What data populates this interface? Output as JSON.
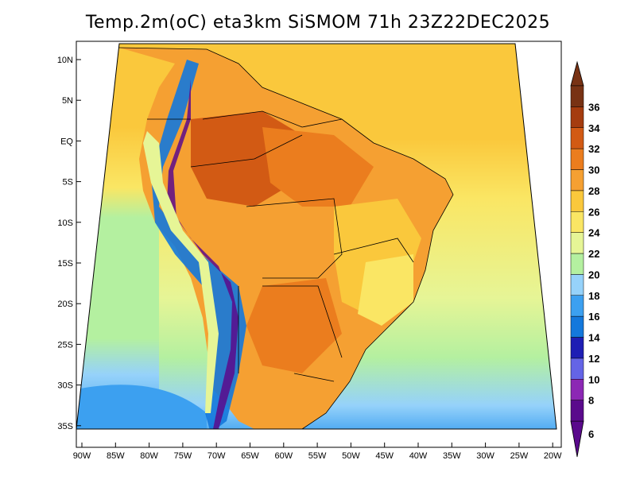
{
  "title": "Temp.2m(oC) eta3km SiSMOM 71h 23Z22DEC2025",
  "map": {
    "lat_ticks": [
      "10N",
      "5N",
      "EQ",
      "5S",
      "10S",
      "15S",
      "20S",
      "25S",
      "30S",
      "35S"
    ],
    "lon_ticks": [
      "90W",
      "85W",
      "80W",
      "75W",
      "70W",
      "65W",
      "60W",
      "55W",
      "50W",
      "45W",
      "40W",
      "35W",
      "30W",
      "25W",
      "20W"
    ]
  },
  "colorbar": {
    "levels": [
      "6",
      "8",
      "10",
      "12",
      "14",
      "16",
      "18",
      "20",
      "22",
      "24",
      "26",
      "28",
      "30",
      "32",
      "34",
      "36"
    ],
    "colors": [
      "#5a0a8c",
      "#8c28b4",
      "#6464e6",
      "#1e1eb4",
      "#1478dc",
      "#3ca0f0",
      "#96d2fa",
      "#b4f0a0",
      "#e6f596",
      "#fae664",
      "#fac83c",
      "#f5a032",
      "#eb7d1e",
      "#d25a14",
      "#a53c0f",
      "#783214"
    ],
    "under_color": "#5a0a8c",
    "over_color": "#783214"
  },
  "colors": {
    "ocean_south": "#3ca0f0",
    "ocean_mid": "#96d2fa",
    "ocean_green": "#b4f0a0",
    "ocean_warm": "#fac83c",
    "land_hot": "#eb7d1e"
  }
}
